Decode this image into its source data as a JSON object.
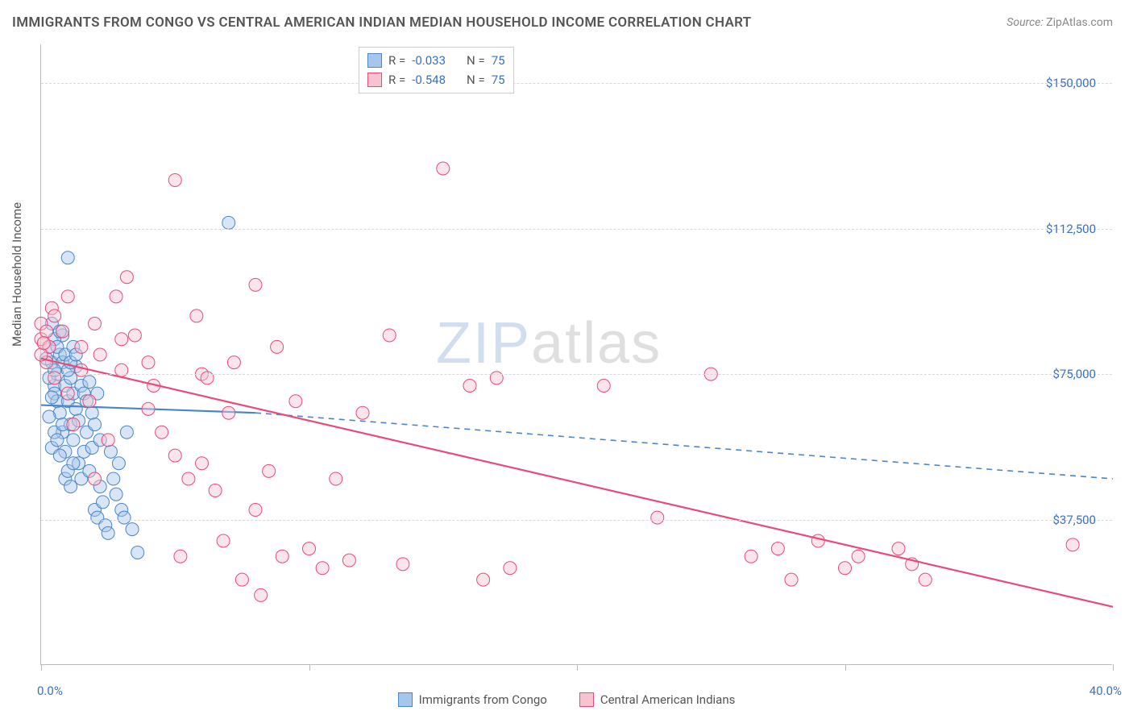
{
  "title": "IMMIGRANTS FROM CONGO VS CENTRAL AMERICAN INDIAN MEDIAN HOUSEHOLD INCOME CORRELATION CHART",
  "source_label": "Source:",
  "source_value": "ZipAtlas.com",
  "ylabel": "Median Household Income",
  "watermark_a": "ZIP",
  "watermark_b": "atlas",
  "chart": {
    "type": "scatter",
    "background_color": "#ffffff",
    "grid_color": "#d8d8d8",
    "axis_color": "#bbbbbb",
    "xlim": [
      0.0,
      40.0
    ],
    "ylim": [
      0,
      160000
    ],
    "x_min_label": "0.0%",
    "x_max_label": "40.0%",
    "x_vticks_pct": [
      0,
      10,
      20,
      30,
      40
    ],
    "y_gridlines": [
      37500,
      75000,
      112500,
      150000
    ],
    "y_tick_labels": [
      "$37,500",
      "$75,000",
      "$112,500",
      "$150,000"
    ],
    "marker_radius": 8,
    "marker_opacity": 0.45,
    "line_width_solid": 2.2,
    "line_width_dash": 1.6,
    "series": [
      {
        "name": "Immigrants from Congo",
        "color_fill": "#a6c6ec",
        "color_stroke": "#4a86c7",
        "r_label": "R =",
        "r_value": "-0.033",
        "n_label": "N =",
        "n_value": "75",
        "trend_solid": {
          "x1": 0.0,
          "y1": 67000,
          "x2": 8.0,
          "y2": 65000
        },
        "trend_dash": {
          "x1": 8.0,
          "y1": 65000,
          "x2": 40.0,
          "y2": 48000
        },
        "points": [
          [
            0.3,
            82000
          ],
          [
            0.4,
            78000
          ],
          [
            0.5,
            72000
          ],
          [
            0.5,
            70000
          ],
          [
            0.6,
            68000
          ],
          [
            0.6,
            75000
          ],
          [
            0.7,
            65000
          ],
          [
            0.7,
            80000
          ],
          [
            0.8,
            60000
          ],
          [
            0.8,
            85000
          ],
          [
            0.9,
            72000
          ],
          [
            0.9,
            55000
          ],
          [
            1.0,
            105000
          ],
          [
            1.0,
            68000
          ],
          [
            1.1,
            62000
          ],
          [
            1.1,
            74000
          ],
          [
            1.2,
            58000
          ],
          [
            1.2,
            70000
          ],
          [
            1.3,
            66000
          ],
          [
            1.3,
            77000
          ],
          [
            1.4,
            52000
          ],
          [
            1.4,
            63000
          ],
          [
            1.5,
            72000
          ],
          [
            1.5,
            48000
          ],
          [
            1.6,
            55000
          ],
          [
            1.6,
            70000
          ],
          [
            1.7,
            60000
          ],
          [
            1.7,
            68000
          ],
          [
            1.8,
            50000
          ],
          [
            1.8,
            73000
          ],
          [
            1.9,
            56000
          ],
          [
            1.9,
            65000
          ],
          [
            2.0,
            40000
          ],
          [
            2.0,
            62000
          ],
          [
            2.1,
            38000
          ],
          [
            2.1,
            70000
          ],
          [
            2.2,
            46000
          ],
          [
            2.2,
            58000
          ],
          [
            2.3,
            42000
          ],
          [
            2.4,
            36000
          ],
          [
            2.5,
            34000
          ],
          [
            2.6,
            55000
          ],
          [
            2.7,
            48000
          ],
          [
            2.8,
            44000
          ],
          [
            2.9,
            52000
          ],
          [
            3.0,
            40000
          ],
          [
            3.1,
            38000
          ],
          [
            3.2,
            60000
          ],
          [
            3.4,
            35000
          ],
          [
            3.6,
            29000
          ],
          [
            0.4,
            88000
          ],
          [
            0.5,
            84000
          ],
          [
            0.6,
            82000
          ],
          [
            0.7,
            86000
          ],
          [
            0.8,
            78000
          ],
          [
            0.9,
            80000
          ],
          [
            1.0,
            76000
          ],
          [
            1.1,
            78000
          ],
          [
            1.2,
            82000
          ],
          [
            1.3,
            80000
          ],
          [
            0.3,
            64000
          ],
          [
            0.4,
            56000
          ],
          [
            0.5,
            60000
          ],
          [
            0.6,
            58000
          ],
          [
            0.7,
            54000
          ],
          [
            0.8,
            62000
          ],
          [
            0.9,
            48000
          ],
          [
            1.0,
            50000
          ],
          [
            1.1,
            46000
          ],
          [
            1.2,
            52000
          ],
          [
            7.0,
            114000
          ],
          [
            0.2,
            79000
          ],
          [
            0.3,
            74000
          ],
          [
            0.4,
            69000
          ],
          [
            0.5,
            76000
          ]
        ]
      },
      {
        "name": "Central American Indians",
        "color_fill": "#f6c3d0",
        "color_stroke": "#e74b7a",
        "r_label": "R =",
        "r_value": "-0.548",
        "n_label": "N =",
        "n_value": "75",
        "trend_solid": {
          "x1": 0.0,
          "y1": 79000,
          "x2": 40.0,
          "y2": 15000
        },
        "trend_dash": null,
        "points": [
          [
            0.0,
            84000
          ],
          [
            0.0,
            88000
          ],
          [
            0.2,
            78000
          ],
          [
            0.3,
            82000
          ],
          [
            0.4,
            92000
          ],
          [
            0.5,
            74000
          ],
          [
            0.8,
            86000
          ],
          [
            1.0,
            70000
          ],
          [
            1.2,
            62000
          ],
          [
            1.5,
            76000
          ],
          [
            1.8,
            68000
          ],
          [
            2.0,
            48000
          ],
          [
            2.2,
            80000
          ],
          [
            2.5,
            58000
          ],
          [
            2.8,
            95000
          ],
          [
            3.0,
            84000
          ],
          [
            3.2,
            100000
          ],
          [
            3.5,
            85000
          ],
          [
            4.0,
            78000
          ],
          [
            4.2,
            72000
          ],
          [
            4.5,
            60000
          ],
          [
            5.0,
            125000
          ],
          [
            5.2,
            28000
          ],
          [
            5.5,
            48000
          ],
          [
            5.8,
            90000
          ],
          [
            6.0,
            75000
          ],
          [
            6.2,
            74000
          ],
          [
            6.5,
            45000
          ],
          [
            6.8,
            32000
          ],
          [
            7.0,
            65000
          ],
          [
            7.2,
            78000
          ],
          [
            7.5,
            22000
          ],
          [
            8.0,
            98000
          ],
          [
            8.2,
            18000
          ],
          [
            8.5,
            50000
          ],
          [
            8.8,
            82000
          ],
          [
            9.0,
            28000
          ],
          [
            9.5,
            68000
          ],
          [
            10.0,
            30000
          ],
          [
            10.5,
            25000
          ],
          [
            11.0,
            48000
          ],
          [
            11.5,
            27000
          ],
          [
            12.0,
            65000
          ],
          [
            13.0,
            85000
          ],
          [
            13.5,
            26000
          ],
          [
            15.0,
            128000
          ],
          [
            16.0,
            72000
          ],
          [
            16.5,
            22000
          ],
          [
            17.0,
            74000
          ],
          [
            17.5,
            25000
          ],
          [
            21.0,
            72000
          ],
          [
            23.0,
            38000
          ],
          [
            25.0,
            75000
          ],
          [
            26.5,
            28000
          ],
          [
            27.5,
            30000
          ],
          [
            28.0,
            22000
          ],
          [
            29.0,
            32000
          ],
          [
            30.0,
            25000
          ],
          [
            30.5,
            28000
          ],
          [
            32.0,
            30000
          ],
          [
            32.5,
            26000
          ],
          [
            33.0,
            22000
          ],
          [
            38.5,
            31000
          ],
          [
            0.0,
            80000
          ],
          [
            0.2,
            86000
          ],
          [
            0.5,
            90000
          ],
          [
            1.0,
            95000
          ],
          [
            1.5,
            82000
          ],
          [
            2.0,
            88000
          ],
          [
            3.0,
            76000
          ],
          [
            4.0,
            66000
          ],
          [
            5.0,
            54000
          ],
          [
            6.0,
            52000
          ],
          [
            8.0,
            40000
          ],
          [
            0.1,
            83000
          ]
        ]
      }
    ]
  },
  "bottom_legend": [
    {
      "label": "Immigrants from Congo",
      "fill": "#a6c6ec",
      "stroke": "#4a86c7"
    },
    {
      "label": "Central American Indians",
      "fill": "#f6c3d0",
      "stroke": "#e74b7a"
    }
  ]
}
